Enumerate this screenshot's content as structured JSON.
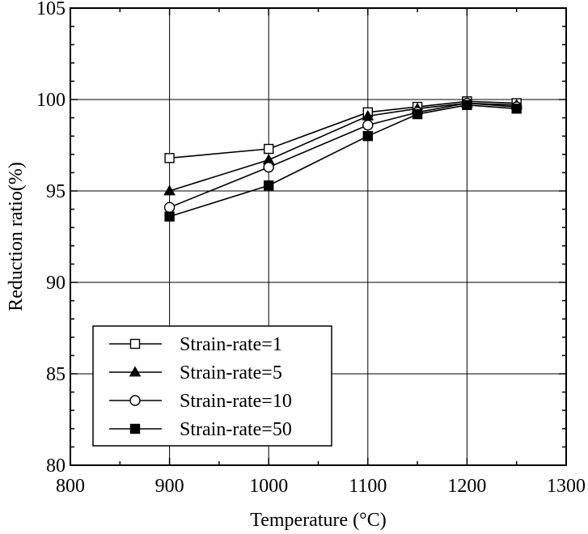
{
  "chart_data": {
    "type": "line",
    "xlabel": "Temperature (°C)",
    "ylabel": "Reduction ratio(%)",
    "xlim": [
      800,
      1300
    ],
    "ylim": [
      80,
      105
    ],
    "xticks": [
      800,
      900,
      1000,
      1100,
      1200,
      1300
    ],
    "yticks": [
      80,
      85,
      90,
      95,
      100,
      105
    ],
    "x_gridlines": [
      900,
      1000,
      1100,
      1200
    ],
    "y_gridlines": [
      85,
      90,
      95,
      100
    ],
    "grid": true,
    "legend_position": "bottom-left",
    "x": [
      900,
      1000,
      1100,
      1150,
      1200,
      1250
    ],
    "series": [
      {
        "name": "Strain-rate=1",
        "marker": "square-open",
        "values": [
          96.8,
          97.3,
          99.3,
          99.6,
          99.9,
          99.8
        ]
      },
      {
        "name": "Strain-rate=5",
        "marker": "triangle-filled",
        "values": [
          95.0,
          96.7,
          99.1,
          99.5,
          99.8,
          99.7
        ]
      },
      {
        "name": "Strain-rate=10",
        "marker": "circle-open",
        "values": [
          94.1,
          96.3,
          98.6,
          99.3,
          99.8,
          99.6
        ]
      },
      {
        "name": "Strain-rate=50",
        "marker": "square-filled",
        "values": [
          93.6,
          95.3,
          98.0,
          99.2,
          99.7,
          99.5
        ]
      }
    ]
  }
}
